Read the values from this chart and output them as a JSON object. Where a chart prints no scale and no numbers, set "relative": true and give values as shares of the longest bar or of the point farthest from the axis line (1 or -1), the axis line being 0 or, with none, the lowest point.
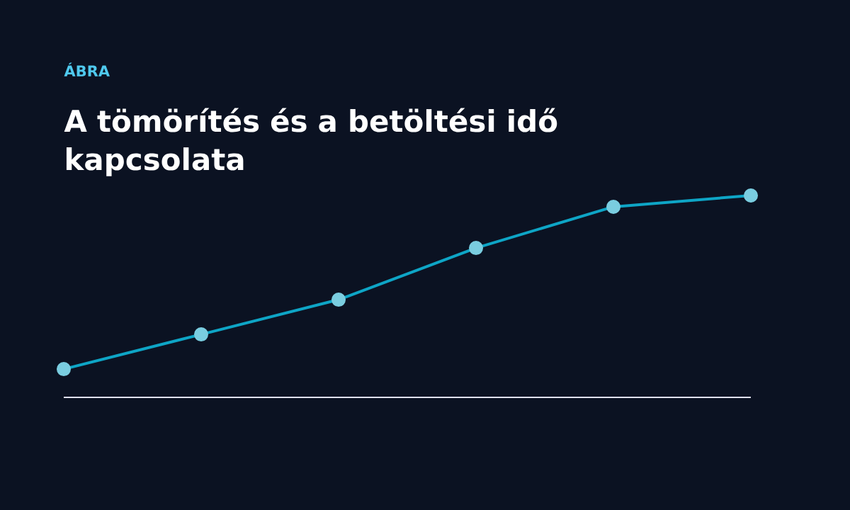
{
  "chart_data": {
    "type": "line",
    "subtitle": "ÁBRA",
    "title": "A tömörítés és a betöltési idő kapcsolata",
    "categories": [
      null,
      null,
      null,
      null,
      null,
      null
    ],
    "relative": true,
    "marker": "circle",
    "series": [
      {
        "color": "#0ea5c6",
        "values": [
          0.14,
          0.312,
          0.484,
          0.74,
          0.944,
          1
        ]
      }
    ]
  }
}
